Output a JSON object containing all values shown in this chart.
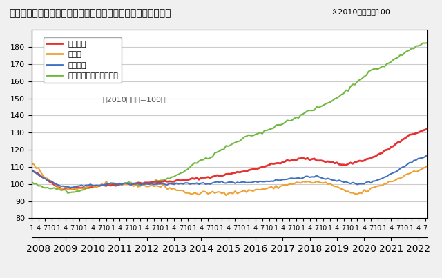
{
  "title": "＜不動産価格指数（住宅）（令和４年８月分・季節調整値）＞",
  "subtitle": "※2010年平均＝100",
  "note": "（2010年平均=100）",
  "background_color": "#f5f5f5",
  "plot_bg": "#ffffff",
  "series": {
    "住宅総合": {
      "color": "#e83030",
      "linewidth": 2.0
    },
    "住宅地": {
      "color": "#f0a030",
      "linewidth": 1.5
    },
    "戸建住宅": {
      "color": "#4070c0",
      "linewidth": 1.5
    },
    "マンション（区分所有）": {
      "color": "#70b840",
      "linewidth": 1.5
    }
  },
  "ylim": [
    80,
    190
  ],
  "yticks": [
    80,
    90,
    100,
    110,
    120,
    130,
    140,
    150,
    160,
    170,
    180
  ],
  "grid_color": "#cccccc",
  "start_year": 2008,
  "start_month": 1,
  "end_year": 2022,
  "end_month": 8
}
